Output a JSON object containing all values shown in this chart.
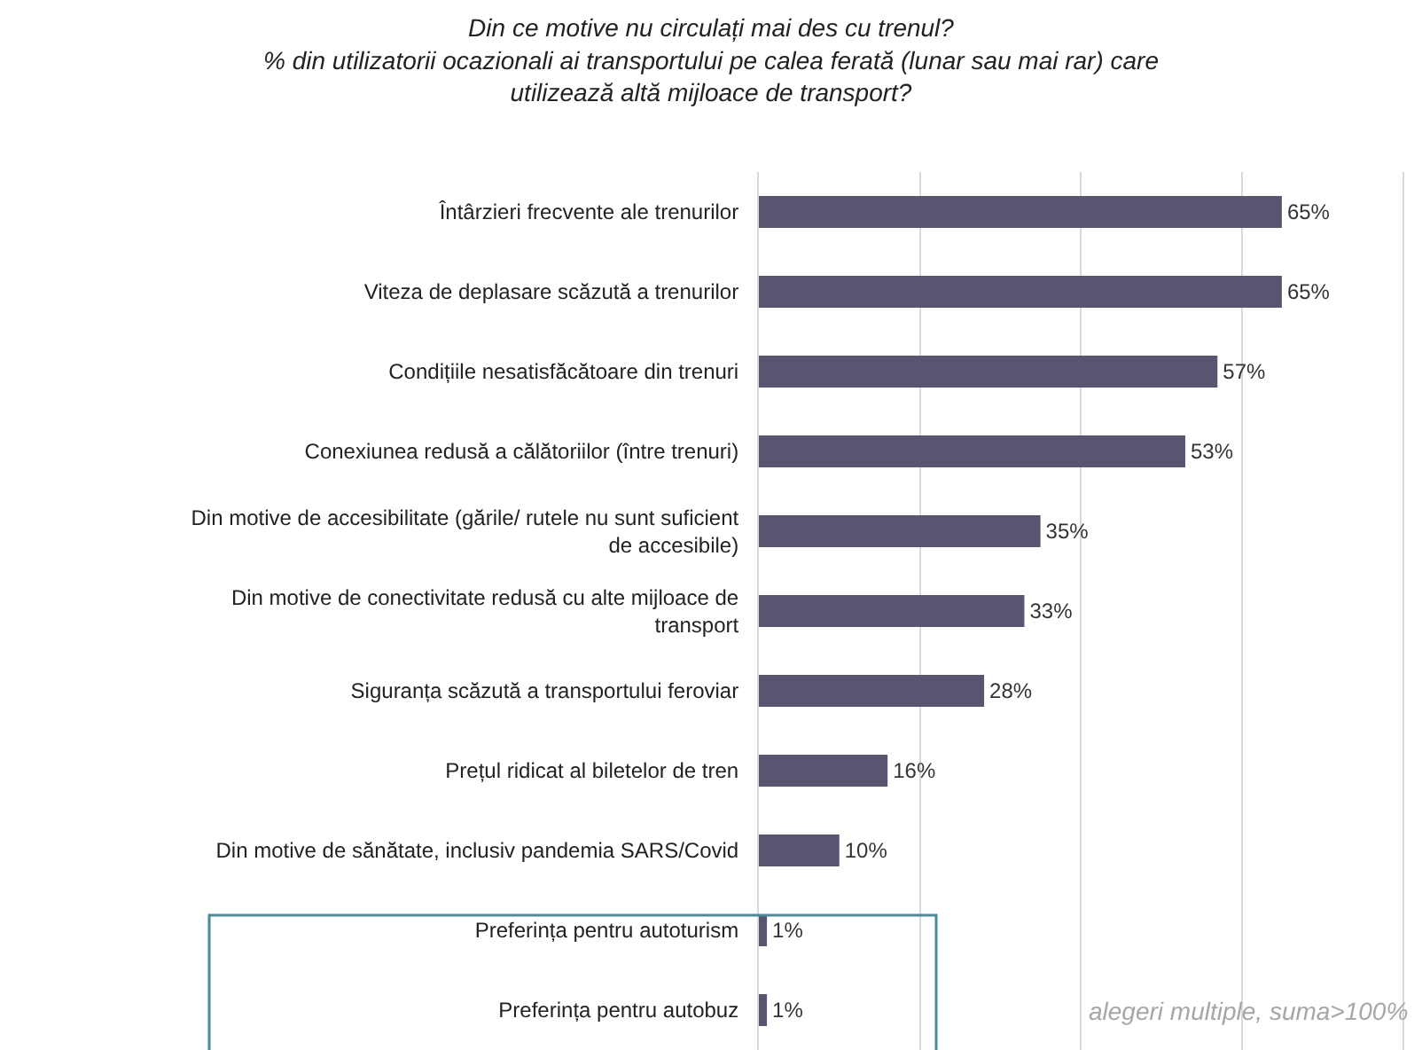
{
  "chart_data": {
    "type": "bar",
    "orientation": "horizontal",
    "title": "Din ce motive nu circulați mai des cu trenul?\n% din utilizatorii ocazionali ai transportului pe calea ferată (lunar sau mai rar) care\nutilizează altă mijloace de transport?",
    "categories": [
      "Întârzieri frecvente ale trenurilor",
      "Viteza de deplasare scăzută a trenurilor",
      "Condițiile nesatisfăcătoare din trenuri",
      "Conexiunea redusă a călătoriilor (între trenuri)",
      "Din motive de accesibilitate (gările/ rutele nu sunt suficient\nde accesibile)",
      "Din motive de conectivitate redusă cu alte mijloace de\ntransport",
      "Siguranța scăzută a transportului feroviar",
      "Prețul ridicat al biletelor de tren",
      "Din motive de sănătate, inclusiv pandemia SARS/Covid",
      "Preferința pentru autoturism",
      "Preferința pentru autobuz"
    ],
    "values": [
      65,
      65,
      57,
      53,
      35,
      33,
      28,
      16,
      10,
      1,
      1
    ],
    "value_labels": [
      "65%",
      "65%",
      "57%",
      "53%",
      "35%",
      "33%",
      "28%",
      "16%",
      "10%",
      "1%",
      "1%"
    ],
    "color": "#5a5470",
    "xlim": [
      0,
      80
    ],
    "xticks": [
      {
        "value": 20,
        "label": null
      },
      {
        "value": 40,
        "label": null
      },
      {
        "value": 60,
        "label": null
      }
    ],
    "grid": "x",
    "tick_labels": "y",
    "legend": false,
    "annotations": [
      "alegeri multiple, suma>100%"
    ]
  }
}
